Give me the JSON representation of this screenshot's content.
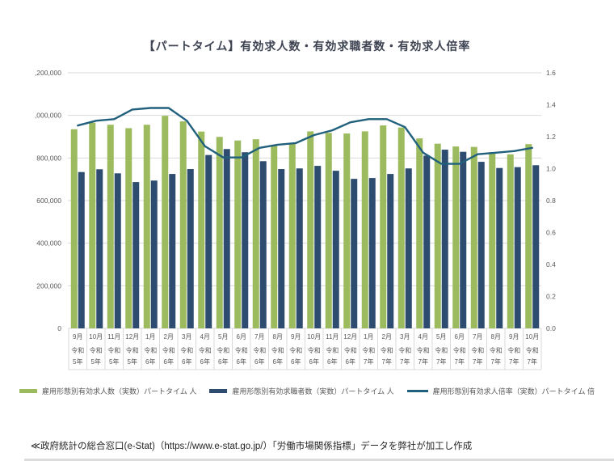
{
  "page": {
    "title": "【パートタイム】有効求人数・有効求職者数・有効求人倍率",
    "source_note": "≪政府統計の総合窓口(e-Stat)（https://www.e-stat.go.jp/）「労働市場関係指標」データを弊社が加工し作成"
  },
  "chart_data": {
    "type": "bar+line combo",
    "title": "【パートタイム】有効求人数・有効求職者数・有効求人倍率",
    "categories": [
      {
        "month": "9月",
        "era": "令和",
        "year": "5年"
      },
      {
        "month": "10月",
        "era": "令和",
        "year": "5年"
      },
      {
        "month": "11月",
        "era": "令和",
        "year": "5年"
      },
      {
        "month": "12月",
        "era": "令和",
        "year": "5年"
      },
      {
        "month": "1月",
        "era": "令和",
        "year": "6年"
      },
      {
        "month": "2月",
        "era": "令和",
        "year": "6年"
      },
      {
        "month": "3月",
        "era": "令和",
        "year": "6年"
      },
      {
        "month": "4月",
        "era": "令和",
        "year": "6年"
      },
      {
        "month": "5月",
        "era": "令和",
        "year": "6年"
      },
      {
        "month": "6月",
        "era": "令和",
        "year": "6年"
      },
      {
        "month": "7月",
        "era": "令和",
        "year": "6年"
      },
      {
        "month": "8月",
        "era": "令和",
        "year": "6年"
      },
      {
        "month": "9月",
        "era": "令和",
        "year": "6年"
      },
      {
        "month": "10月",
        "era": "令和",
        "year": "6年"
      },
      {
        "month": "11月",
        "era": "令和",
        "year": "6年"
      },
      {
        "month": "12月",
        "era": "令和",
        "year": "6年"
      },
      {
        "month": "1月",
        "era": "令和",
        "year": "7年"
      },
      {
        "month": "2月",
        "era": "令和",
        "year": "7年"
      },
      {
        "month": "3月",
        "era": "令和",
        "year": "7年"
      },
      {
        "month": "4月",
        "era": "令和",
        "year": "7年"
      },
      {
        "month": "5月",
        "era": "令和",
        "year": "7年"
      },
      {
        "month": "6月",
        "era": "令和",
        "year": "7年"
      },
      {
        "month": "7月",
        "era": "令和",
        "year": "7年"
      },
      {
        "month": "8月",
        "era": "令和",
        "year": "7年"
      },
      {
        "month": "9月",
        "era": "令和",
        "year": "7年"
      },
      {
        "month": "10月",
        "era": "令和",
        "year": "7年"
      }
    ],
    "series": [
      {
        "name": "雇用形態別有効求人数（実数）パートタイム 人",
        "type": "bar",
        "axis": "left",
        "color": "#9cba5e",
        "values": [
          935000,
          966000,
          956000,
          940000,
          956000,
          998000,
          972000,
          924000,
          899000,
          882000,
          888000,
          858000,
          867000,
          925000,
          918000,
          915000,
          925000,
          953000,
          943000,
          892000,
          867000,
          854000,
          852000,
          827000,
          817000,
          865000
        ]
      },
      {
        "name": "雇用形態別有効求職者数（実数）パートタイム 人",
        "type": "bar",
        "axis": "left",
        "color": "#2e4c6f",
        "values": [
          734000,
          747000,
          728000,
          687000,
          694000,
          725000,
          748000,
          814000,
          842000,
          827000,
          785000,
          748000,
          751000,
          763000,
          740000,
          702000,
          706000,
          725000,
          751000,
          811000,
          839000,
          829000,
          782000,
          753000,
          757000,
          766000
        ]
      },
      {
        "name": "雇用形態別有効求人倍率（実数）パートタイム 倍",
        "type": "line",
        "axis": "right",
        "color": "#20607c",
        "values": [
          1.27,
          1.3,
          1.31,
          1.37,
          1.38,
          1.38,
          1.3,
          1.14,
          1.07,
          1.07,
          1.13,
          1.15,
          1.16,
          1.21,
          1.24,
          1.29,
          1.31,
          1.31,
          1.26,
          1.1,
          1.03,
          1.03,
          1.09,
          1.1,
          1.11,
          1.13
        ]
      }
    ],
    "left_axis": {
      "min": 0,
      "max": 1200000,
      "step": 200000,
      "tick_labels_as_shown": [
        ",200,000",
        ",000,000",
        "800,000",
        "600,000",
        "400,000",
        "200,000",
        "0"
      ]
    },
    "right_axis": {
      "min": 0.0,
      "max": 1.6,
      "step": 0.2,
      "tick_labels": [
        "1.6",
        "1.4",
        "1.2",
        "1.0",
        "0.8",
        "0.6",
        "0.4",
        "0.2",
        "0.0"
      ]
    },
    "legend_position": "bottom",
    "grid": "horizontal",
    "colors": {
      "grid": "#d9d9d9",
      "axis_text": "#595959",
      "title_text": "#3f4453",
      "legend_text": "#595959"
    }
  }
}
